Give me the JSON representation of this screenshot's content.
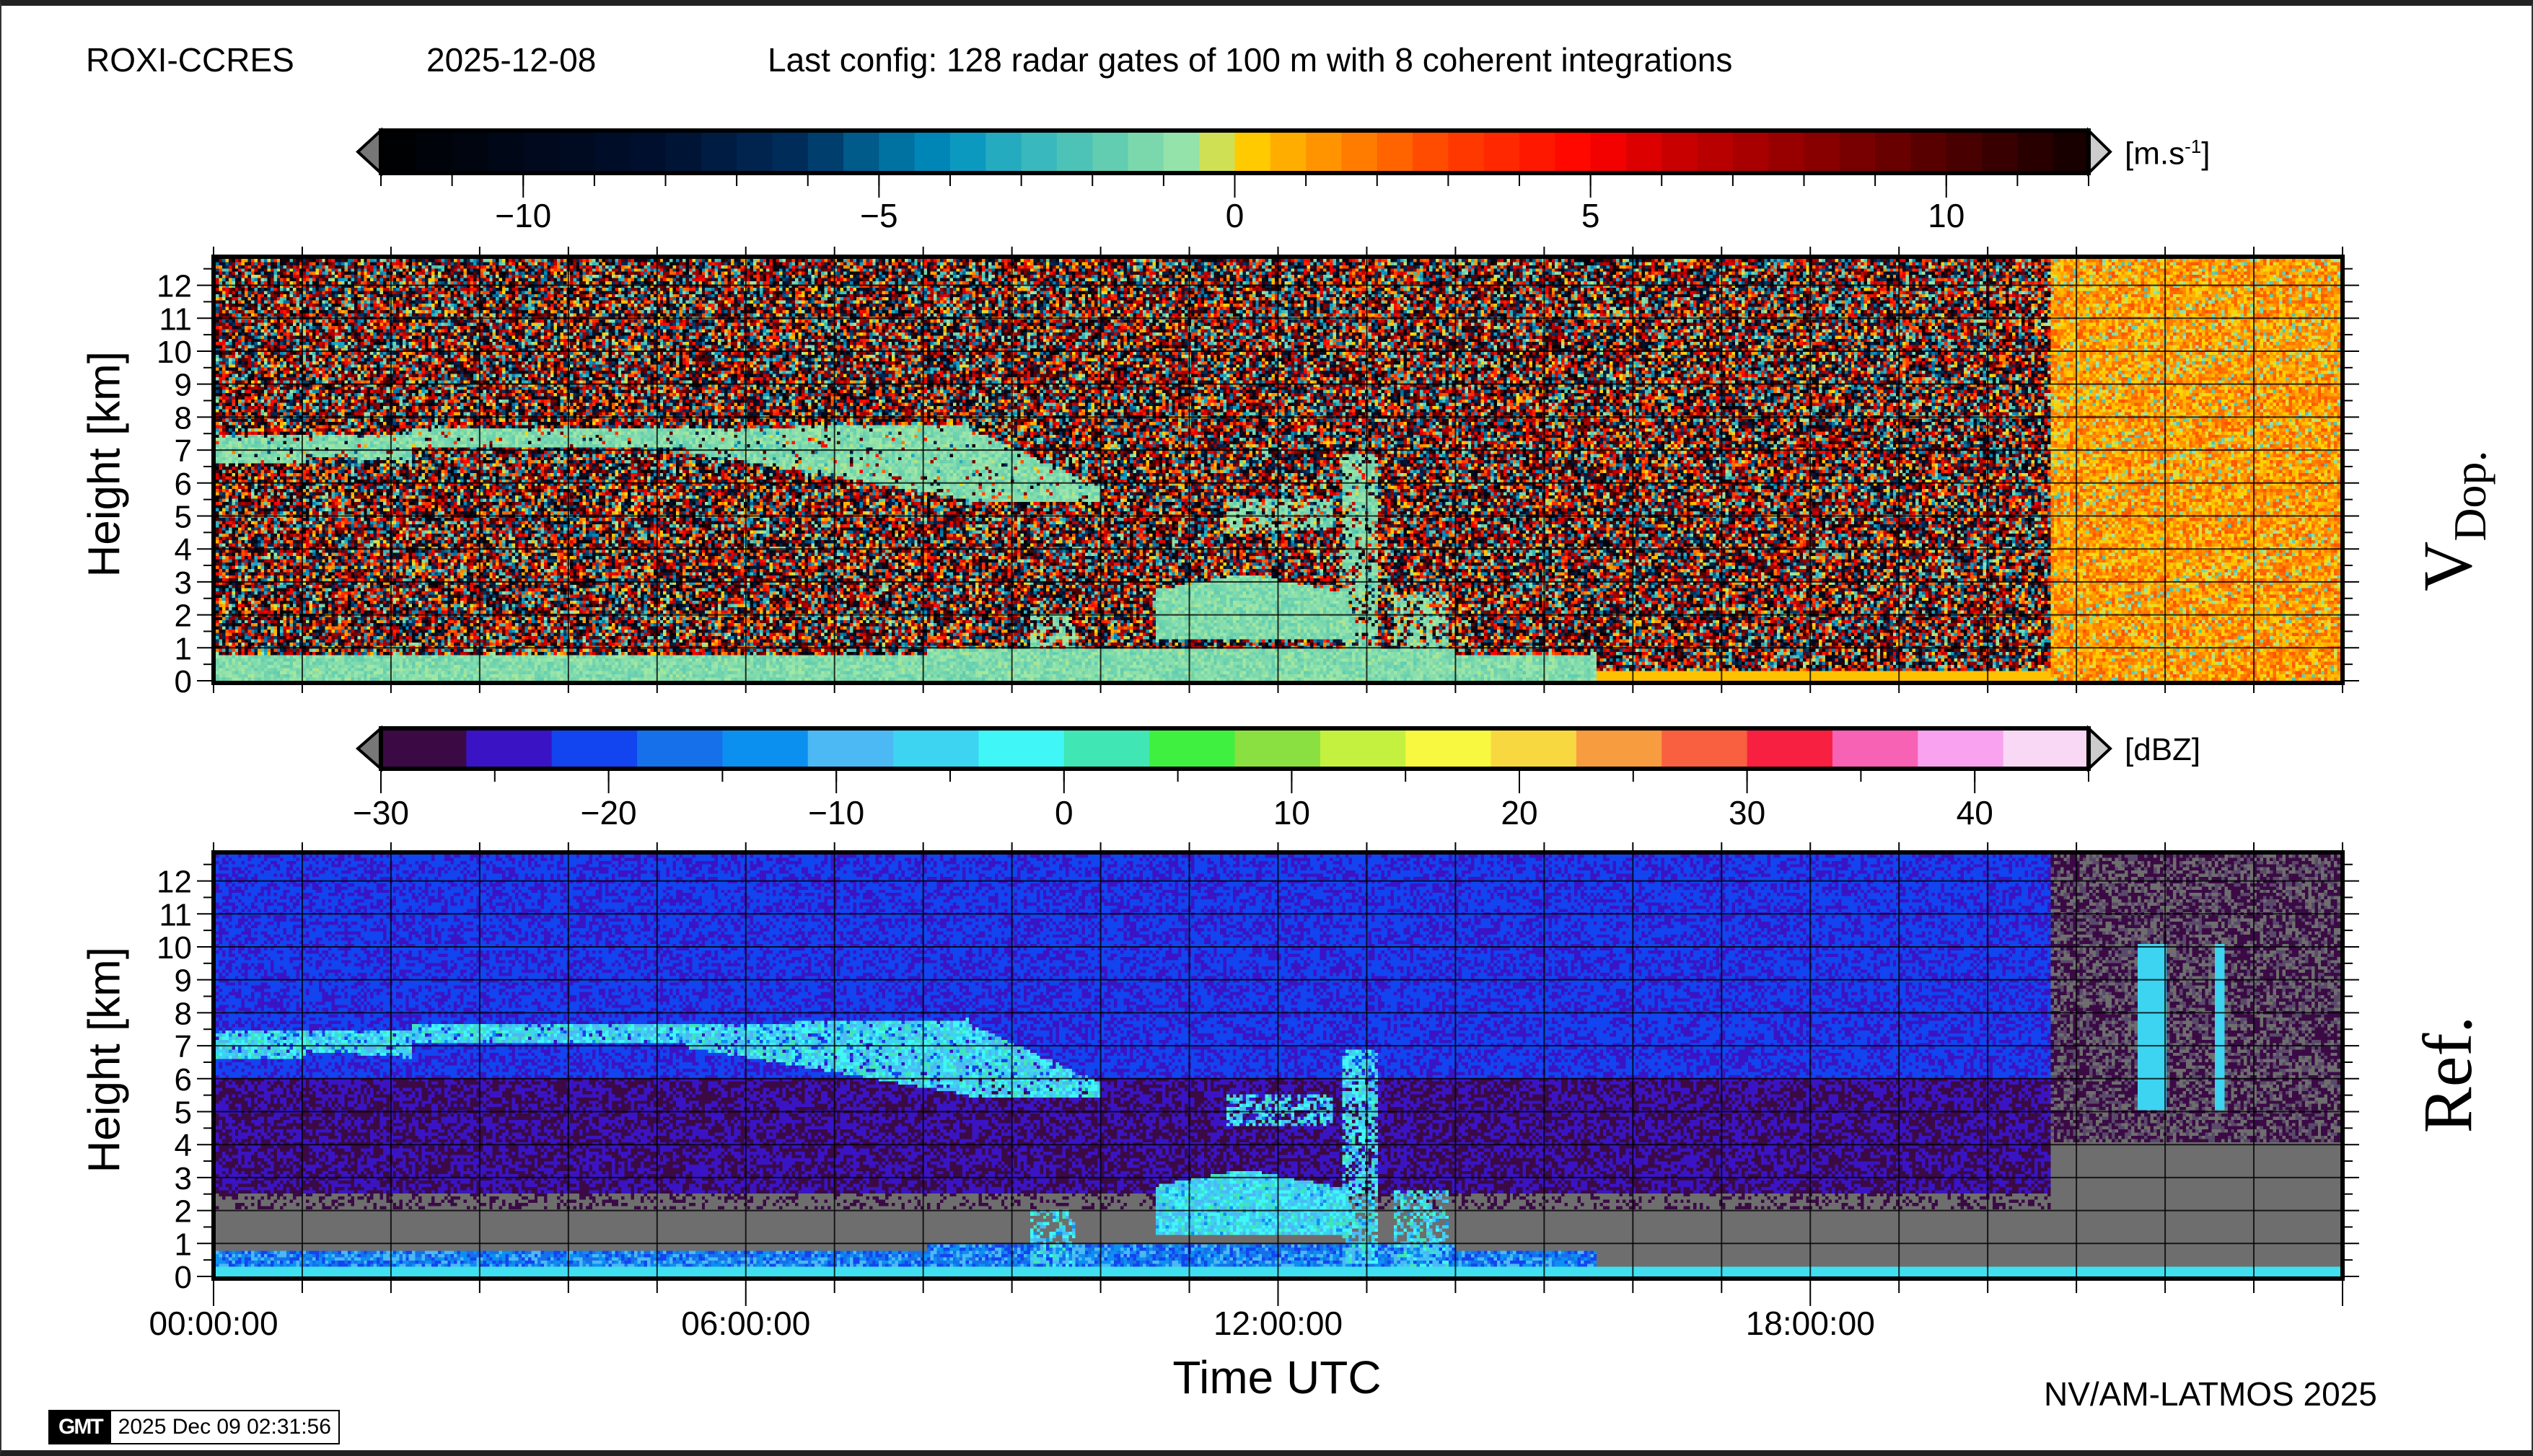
{
  "header": {
    "station": "ROXI-CCRES",
    "date": "2025-12-08",
    "config": "Last config: 128 radar gates of 100 m with 8 coherent integrations"
  },
  "footer": {
    "credit": "NV/AM-LATMOS 2025",
    "gmt_logo": "GMT",
    "gmt_timestamp": "2025 Dec 09 02:31:56"
  },
  "chart_data": [
    {
      "type": "heatmap",
      "panel_label": "V",
      "panel_label_sub": "Dop.",
      "ylabel": "Height [km]",
      "xlabel": "",
      "xlim_hours": [
        0,
        24
      ],
      "ylim": [
        0,
        12.8
      ],
      "yticks": [
        "0",
        "1",
        "2",
        "3",
        "4",
        "5",
        "6",
        "7",
        "8",
        "9",
        "10",
        "11",
        "12"
      ],
      "grid": true,
      "colorbar": {
        "unit": "[m.s",
        "unit_sup": "-1",
        "unit_close": "]",
        "range": [
          -12,
          12
        ],
        "step": 0.5,
        "ticks": [
          "−10",
          "−5",
          "0",
          "5",
          "10"
        ],
        "tick_values": [
          -10,
          -5,
          0,
          5,
          10
        ],
        "anchors": [
          [
            -12,
            "#000000"
          ],
          [
            -10,
            "#00081a"
          ],
          [
            -8,
            "#001030"
          ],
          [
            -6,
            "#003060"
          ],
          [
            -5,
            "#006898"
          ],
          [
            -4,
            "#0090c0"
          ],
          [
            -3,
            "#30b4c0"
          ],
          [
            -2,
            "#55c8b2"
          ],
          [
            -0.5,
            "#a0e8a8"
          ],
          [
            0,
            "#ffd800"
          ],
          [
            1,
            "#ffa000"
          ],
          [
            2,
            "#ff7000"
          ],
          [
            3,
            "#ff4000"
          ],
          [
            5,
            "#ff0000"
          ],
          [
            6,
            "#d00000"
          ],
          [
            8,
            "#900000"
          ],
          [
            10,
            "#500000"
          ],
          [
            12,
            "#100000"
          ]
        ]
      }
    },
    {
      "type": "heatmap",
      "panel_label": "Ref.",
      "ylabel": "Height [km]",
      "xlabel": "Time UTC",
      "xlim_hours": [
        0,
        24
      ],
      "ylim": [
        0,
        12.8
      ],
      "xticks": [
        "00:00:00",
        "06:00:00",
        "12:00:00",
        "18:00:00"
      ],
      "xtick_hours": [
        0,
        6,
        12,
        18
      ],
      "yticks": [
        "0",
        "1",
        "2",
        "3",
        "4",
        "5",
        "6",
        "7",
        "8",
        "9",
        "10",
        "11",
        "12"
      ],
      "grid": true,
      "colorbar": {
        "unit": "[dBZ]",
        "range": [
          -30,
          45
        ],
        "ticks": [
          "−30",
          "−20",
          "−10",
          "0",
          "10",
          "20",
          "30",
          "40"
        ],
        "tick_values": [
          -30,
          -20,
          -10,
          0,
          10,
          20,
          30,
          40
        ],
        "colors": [
          "#3b0a45",
          "#3a14c4",
          "#1244f0",
          "#1670ea",
          "#0c90f0",
          "#4cb8f4",
          "#3cd4f0",
          "#40f6f6",
          "#40e6b4",
          "#40f040",
          "#8ae040",
          "#c4f040",
          "#f8f840",
          "#f8d840",
          "#f89c40",
          "#f86040",
          "#f82040",
          "#f862b4",
          "#f8a2f0",
          "#f8d8f4"
        ]
      }
    }
  ]
}
